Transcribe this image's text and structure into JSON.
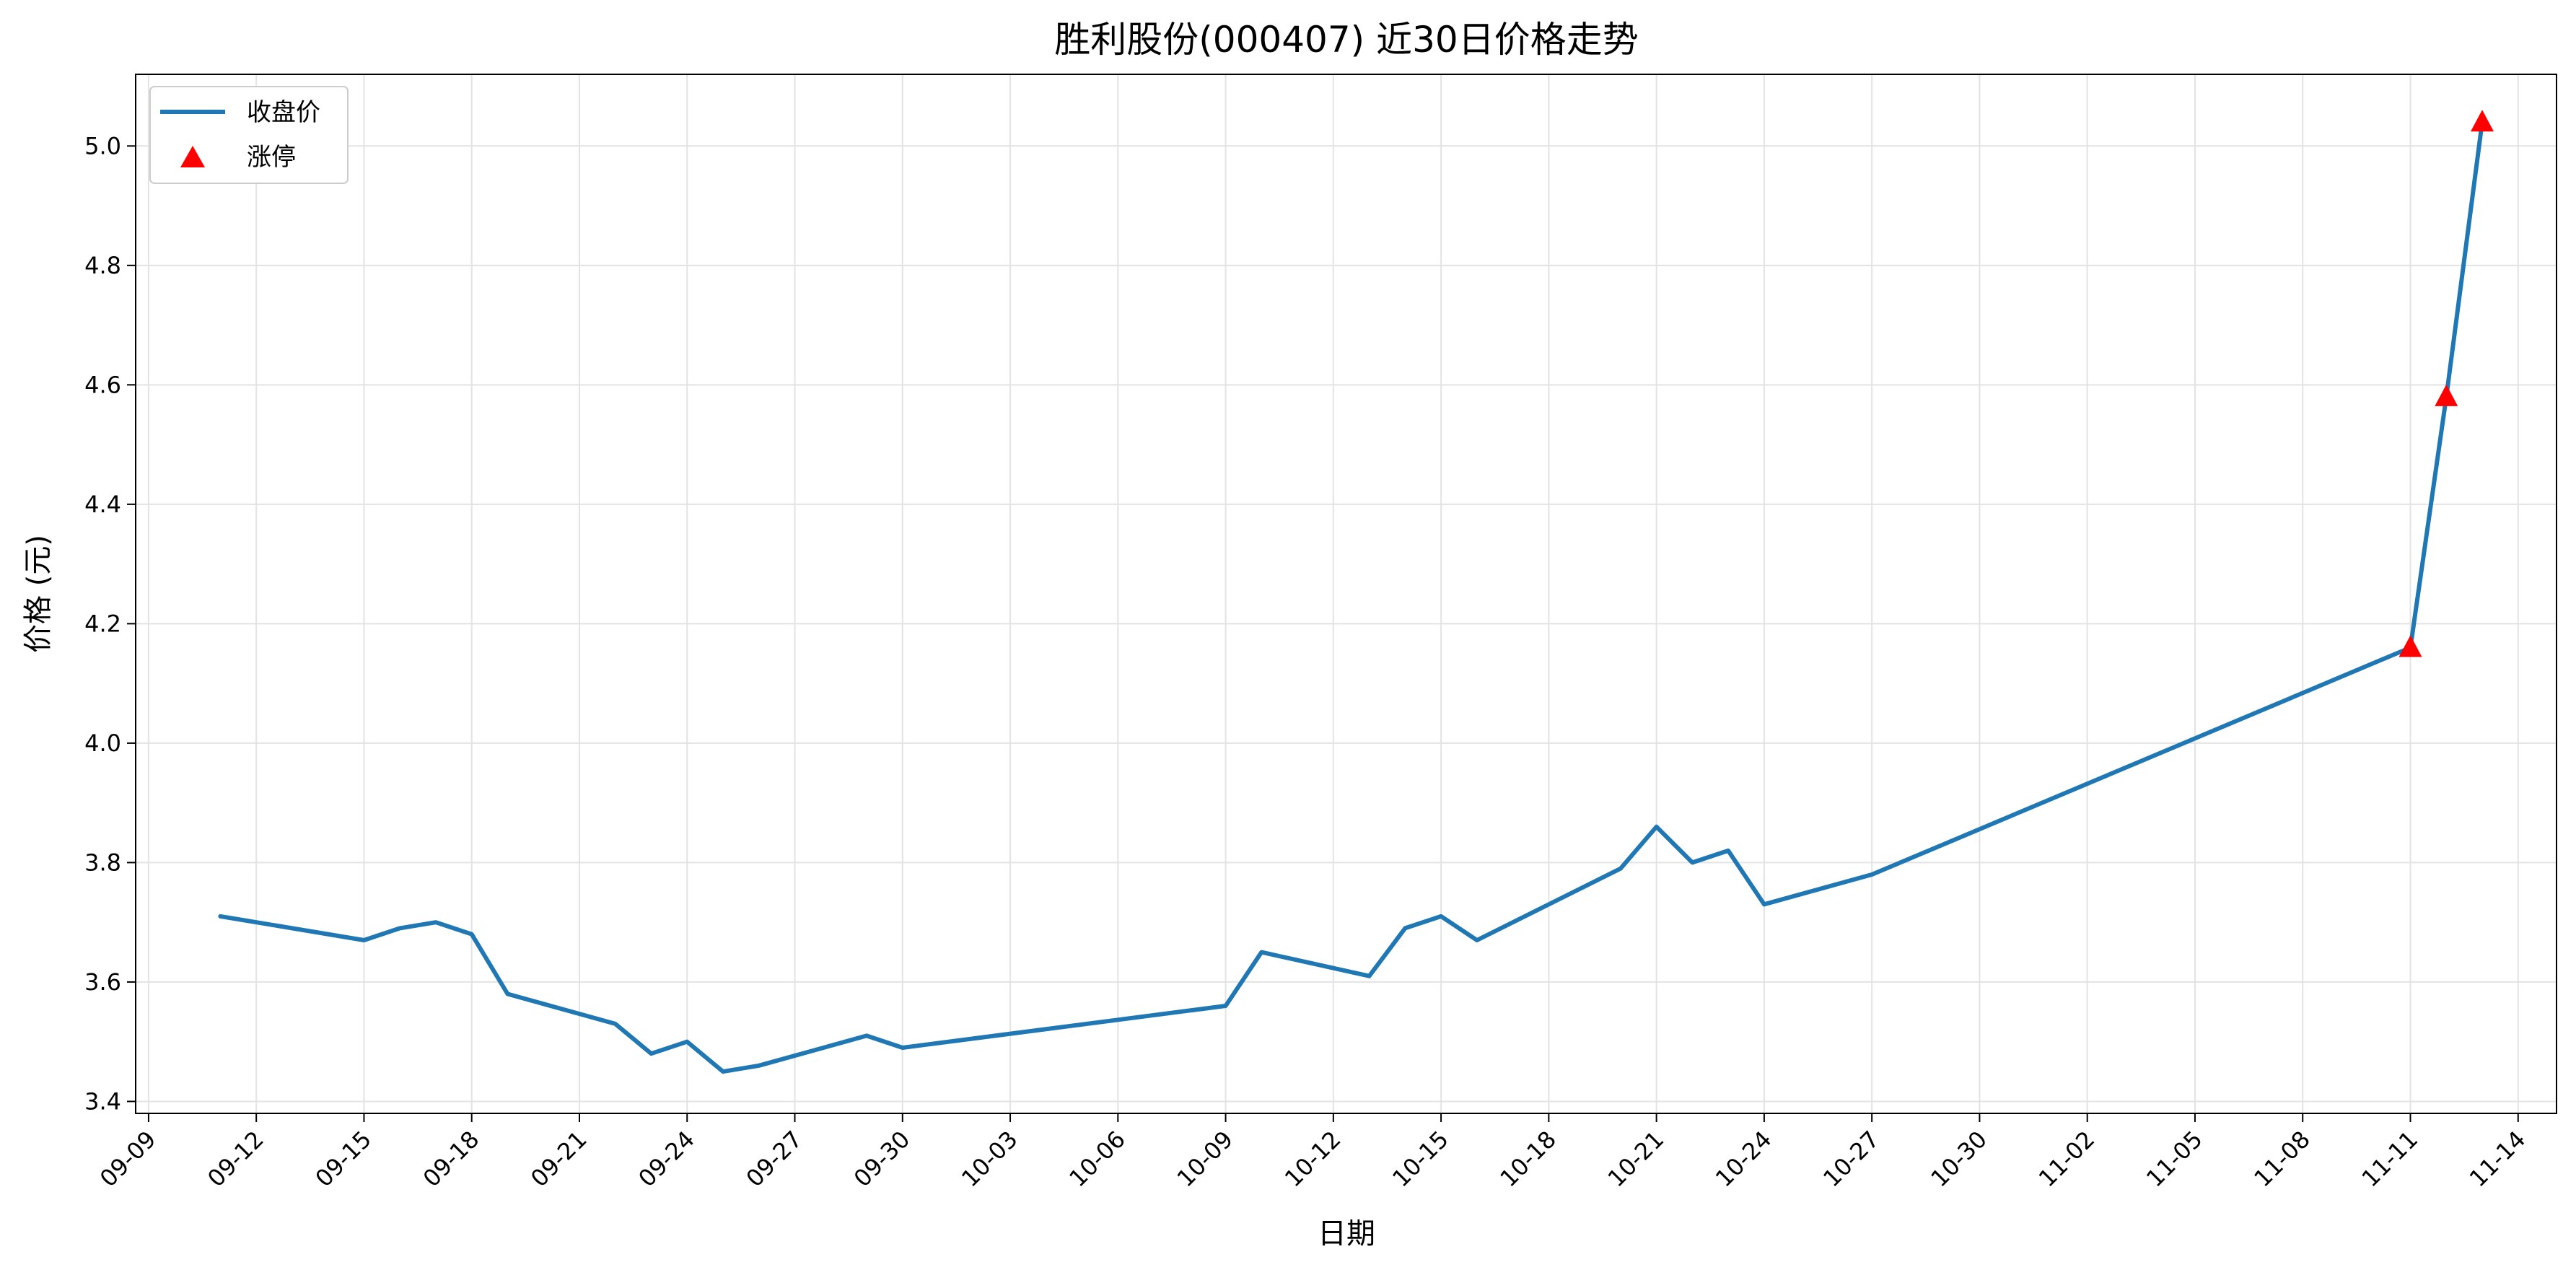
{
  "chart_data": {
    "type": "line",
    "title": "胜利股份(000407) 近30日价格走势",
    "xlabel": "日期",
    "ylabel": "价格 (元)",
    "ylim": [
      3.38,
      5.12
    ],
    "y_ticks": [
      "3.4",
      "3.6",
      "3.8",
      "4.0",
      "4.2",
      "4.4",
      "4.6",
      "4.8",
      "5.0"
    ],
    "x_ticks": [
      "09-09",
      "09-12",
      "09-15",
      "09-18",
      "09-21",
      "09-24",
      "09-27",
      "09-30",
      "10-03",
      "10-06",
      "10-09",
      "10-12",
      "10-15",
      "10-18",
      "10-21",
      "10-24",
      "10-27",
      "10-30",
      "11-02",
      "11-05",
      "11-08",
      "11-11",
      "11-14"
    ],
    "grid": true,
    "legend_position": "top-left",
    "series": [
      {
        "name": "收盘价",
        "color": "#1f77b4",
        "points": [
          [
            "09-11",
            3.71
          ],
          [
            "09-15",
            3.67
          ],
          [
            "09-16",
            3.69
          ],
          [
            "09-17",
            3.7
          ],
          [
            "09-18",
            3.68
          ],
          [
            "09-19",
            3.58
          ],
          [
            "09-22",
            3.53
          ],
          [
            "09-23",
            3.48
          ],
          [
            "09-24",
            3.5
          ],
          [
            "09-25",
            3.45
          ],
          [
            "09-26",
            3.46
          ],
          [
            "09-29",
            3.51
          ],
          [
            "09-30",
            3.49
          ],
          [
            "10-09",
            3.56
          ],
          [
            "10-10",
            3.65
          ],
          [
            "10-13",
            3.61
          ],
          [
            "10-14",
            3.69
          ],
          [
            "10-15",
            3.71
          ],
          [
            "10-16",
            3.67
          ],
          [
            "10-20",
            3.79
          ],
          [
            "10-21",
            3.86
          ],
          [
            "10-22",
            3.8
          ],
          [
            "10-23",
            3.82
          ],
          [
            "10-24",
            3.73
          ],
          [
            "10-27",
            3.78
          ],
          [
            "11-11",
            4.16
          ],
          [
            "11-12",
            4.58
          ],
          [
            "11-13",
            5.04
          ]
        ]
      },
      {
        "name": "涨停",
        "color": "#ff0000",
        "marker": "triangle",
        "points": [
          [
            "11-11",
            4.16
          ],
          [
            "11-12",
            4.58
          ],
          [
            "11-13",
            5.04
          ]
        ]
      }
    ]
  }
}
